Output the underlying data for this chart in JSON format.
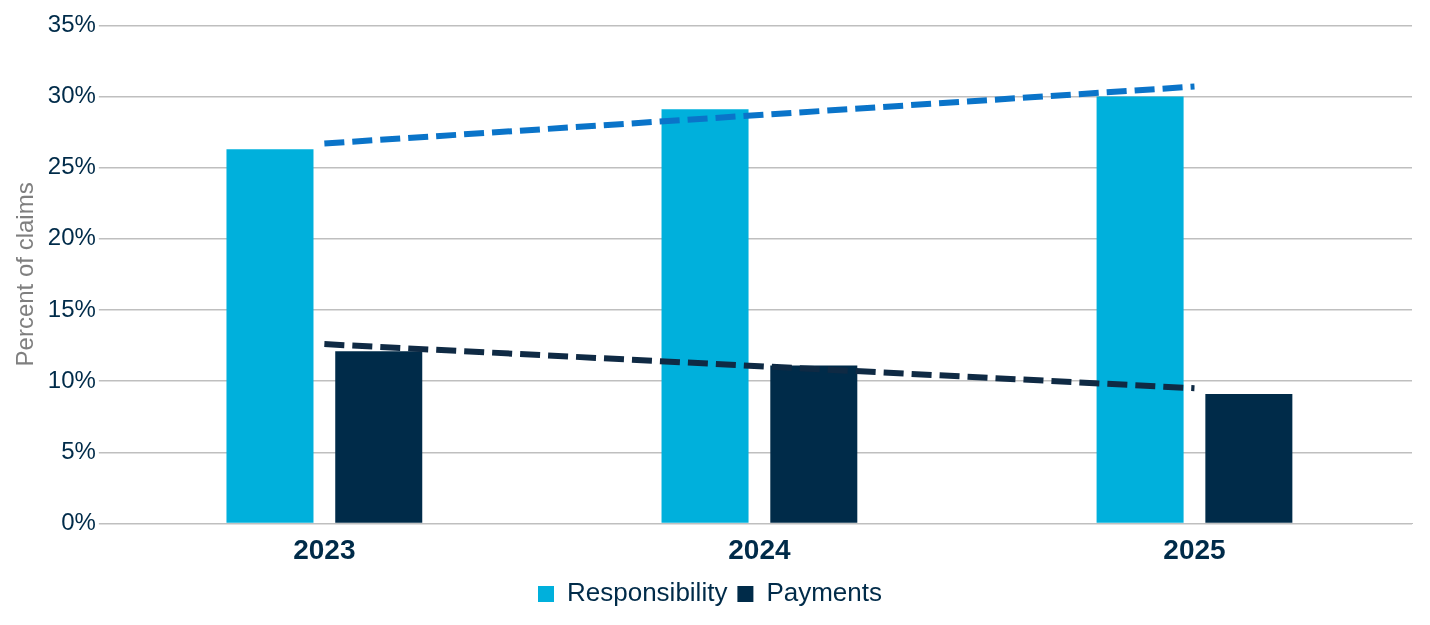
{
  "chart_data": {
    "type": "bar",
    "ylabel": "Percent of claims",
    "categories": [
      "2023",
      "2024",
      "2025"
    ],
    "series": [
      {
        "name": "Responsibility",
        "color": "#00b0dc",
        "values": [
          26.3,
          29.1,
          30.0
        ]
      },
      {
        "name": "Payments",
        "color": "#002b49",
        "values": [
          12.1,
          11.1,
          9.1
        ]
      },
      {
        "type": "line",
        "color": "#0a74c9",
        "values": [
          26.7,
          28.7,
          30.7
        ],
        "line_style": "dashed"
      },
      {
        "type": "line",
        "color": "#0f2a44",
        "values": [
          12.6,
          11.05,
          9.5
        ],
        "line_style": "dashed"
      }
    ],
    "ylim": [
      0,
      35
    ],
    "yticks": [
      {
        "value": 0,
        "label": "0%"
      },
      {
        "value": 5,
        "label": "5%"
      },
      {
        "value": 10,
        "label": "10%"
      },
      {
        "value": 15,
        "label": "15%"
      },
      {
        "value": 20,
        "label": "20%"
      },
      {
        "value": 25,
        "label": "25%"
      },
      {
        "value": 30,
        "label": "30%"
      },
      {
        "value": 35,
        "label": "35%"
      }
    ],
    "grid": "y",
    "legend": "bottom",
    "marker": "none"
  }
}
